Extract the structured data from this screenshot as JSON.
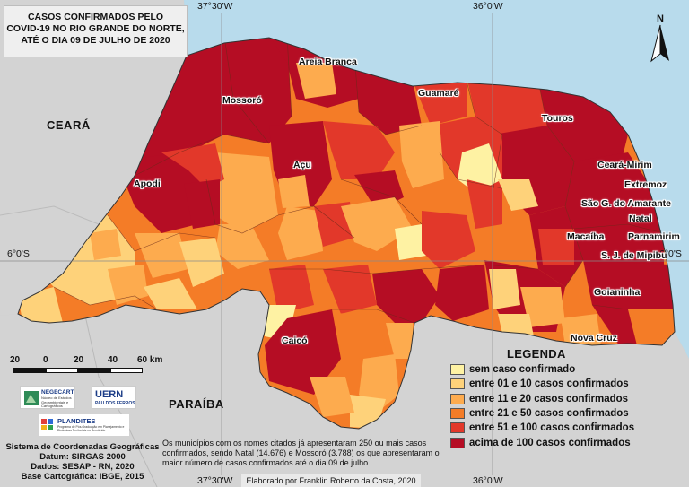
{
  "title": {
    "line1": "CASOS CONFIRMADOS PELO",
    "line2": "COVID-19 NO RIO GRANDE DO NORTE,",
    "line3": "ATÉ O DIA 09 DE JULHO DE 2020"
  },
  "grid_labels": {
    "top_left": "37°30'W",
    "top_right": "36°0'W",
    "bottom_left": "37°30'W",
    "bottom_right": "36°0'W",
    "lat_left": "6°0'S",
    "lat_right": "6°0'S"
  },
  "states": {
    "ceara": "CEARÁ",
    "paraiba": "PARAÍBA"
  },
  "north_arrow": "N",
  "cities": {
    "areia_branca": "Areia Branca",
    "mossoro": "Mossoró",
    "guamare": "Guamaré",
    "touros": "Touros",
    "apodi": "Apodi",
    "acu": "Açu",
    "ceara_mirim": "Ceará-Mirim",
    "extremoz": "Extremoz",
    "sao_goncalo": "São G. do Amarante",
    "natal": "Natal",
    "macaiba": "Macaíba",
    "parnamirim": "Parnamirim",
    "sj_mipibu": "S. J. de Mipibu",
    "goianinha": "Goianinha",
    "nova_cruz": "Nova Cruz",
    "caico": "Caicó"
  },
  "legend": {
    "title": "LEGENDA",
    "items": [
      {
        "label": "sem caso confirmado",
        "color": "#fef2a3"
      },
      {
        "label": "entre 01 e 10 casos confirmados",
        "color": "#fed27a"
      },
      {
        "label": "entre 11 e 20 casos confirmados",
        "color": "#fdab4e"
      },
      {
        "label": "entre 21 e 50 casos confirmados",
        "color": "#f47c27"
      },
      {
        "label": "entre 51 e 100 casos confirmados",
        "color": "#e2382a"
      },
      {
        "label": "acima de 100 casos confirmados",
        "color": "#b50d24"
      }
    ]
  },
  "scale": {
    "ticks": [
      "20",
      "0",
      "20",
      "40",
      "60 km"
    ]
  },
  "logos": {
    "negecart": "NEGECART",
    "negecart_sub": "Núcleo de Estudos Geoambientais e Cartográficos",
    "uern": "UERN",
    "uern_sub": "PAU DOS FERROS",
    "plandites": "PLANDITES",
    "plandites_sub": "Programa de Pós-Graduação em Planejamento e Dinâmicas Territoriais no Semiárido"
  },
  "info": {
    "line1": "Sistema de Coordenadas Geográficas",
    "line2": "Datum: SIRGAS 2000",
    "line3": "Dados: SESAP - RN, 2020",
    "line4": "Base Cartográfica: IBGE, 2015"
  },
  "note": "Os municípios com os nomes citados já apresentaram 250 ou mais casos confirmados, sendo Natal (14.676) e Mossoró (3.788) os que apresentaram o maior número de casos confirmados até o dia 09 de julho.",
  "credit": "Elaborado por Franklin Roberto da Costa, 2020",
  "colors": {
    "background": "#c9c9c9",
    "ocean": "#b8dbec",
    "neighbor": "#d2d2d2"
  }
}
